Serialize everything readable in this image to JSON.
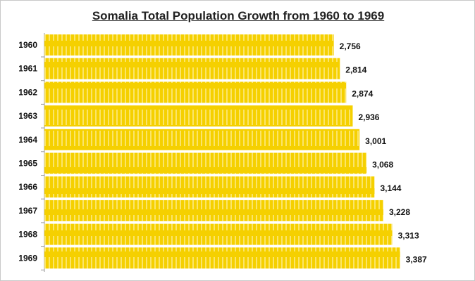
{
  "chart_data": {
    "type": "bar",
    "orientation": "horizontal",
    "title": "Somalia Total Population Growth from 1960 to 1969",
    "xlabel": "",
    "ylabel": "",
    "categories": [
      "1960",
      "1961",
      "1962",
      "1963",
      "1964",
      "1965",
      "1966",
      "1967",
      "1968",
      "1969"
    ],
    "values": [
      2756,
      2814,
      2874,
      2936,
      3001,
      3068,
      3144,
      3228,
      3313,
      3387
    ],
    "data_labels": [
      "2,756",
      "2,814",
      "2,874",
      "2,936",
      "3,001",
      "3,068",
      "3,144",
      "3,228",
      "3,313",
      "3,387"
    ],
    "xlim": [
      0,
      4000
    ],
    "grid": false,
    "legend": "none",
    "colors": {
      "bar": "#f5d000",
      "stripe": "#fbe56a",
      "text": "#111111"
    }
  }
}
